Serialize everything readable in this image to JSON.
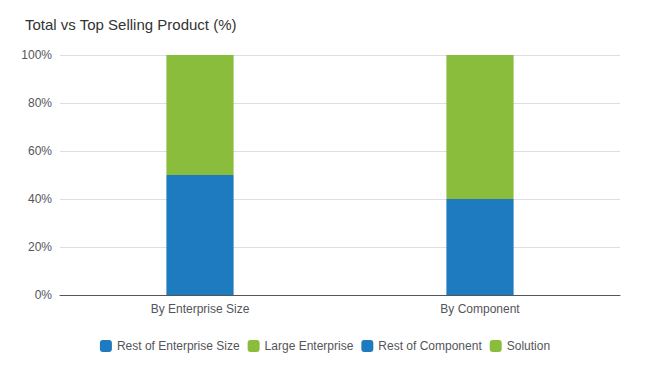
{
  "chart_data": {
    "type": "bar",
    "title": "Total vs Top Selling Product (%)",
    "categories": [
      "By Enterprise Size",
      "By Component"
    ],
    "series": [
      {
        "name": "Rest of Enterprise Size",
        "color": "#1F7BBF",
        "values": [
          50,
          null
        ]
      },
      {
        "name": "Large Enterprise",
        "color": "#8BBD3C",
        "values": [
          50,
          null
        ]
      },
      {
        "name": "Rest of Component",
        "color": "#1F7BBF",
        "values": [
          null,
          40
        ]
      },
      {
        "name": "Solution",
        "color": "#8BBD3C",
        "values": [
          null,
          60
        ]
      }
    ],
    "stacked": true,
    "ylim": [
      0,
      100
    ],
    "yticks": [
      {
        "value": 0,
        "label": "0%"
      },
      {
        "value": 20,
        "label": "20%"
      },
      {
        "value": 40,
        "label": "40%"
      },
      {
        "value": 60,
        "label": "60%"
      },
      {
        "value": 80,
        "label": "80%"
      },
      {
        "value": 100,
        "label": "100%"
      }
    ],
    "grid": true,
    "legend": "bottom"
  }
}
